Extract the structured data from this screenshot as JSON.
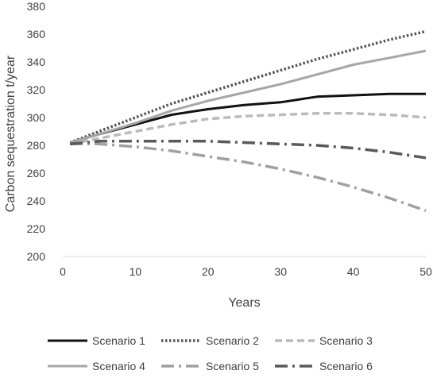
{
  "chart_data": {
    "type": "line",
    "title": "",
    "xlabel": "Years",
    "ylabel": "Carbon sequestration t/year",
    "xlim": [
      0,
      50
    ],
    "ylim": [
      200,
      380
    ],
    "x_ticks": [
      0,
      10,
      20,
      30,
      40,
      50
    ],
    "y_ticks": [
      200,
      220,
      240,
      260,
      280,
      300,
      320,
      340,
      360,
      380
    ],
    "grid": "none",
    "legend_position": "bottom",
    "x": [
      1,
      5,
      10,
      15,
      20,
      25,
      30,
      35,
      40,
      45,
      50
    ],
    "series": [
      {
        "name": "Scenario 1",
        "color": "#111111",
        "dash": "solid",
        "values": [
          282,
          288,
          295,
          302,
          306,
          309,
          311,
          315,
          316,
          317,
          317
        ]
      },
      {
        "name": "Scenario 2",
        "color": "#555555",
        "dash": "dot",
        "values": [
          282,
          290,
          300,
          310,
          318,
          326,
          334,
          342,
          349,
          356,
          362
        ]
      },
      {
        "name": "Scenario 3",
        "color": "#bbbbbb",
        "dash": "dash",
        "values": [
          281,
          285,
          290,
          295,
          299,
          301,
          302,
          303,
          303,
          302,
          300
        ]
      },
      {
        "name": "Scenario 4",
        "color": "#a6a6a6",
        "dash": "solid",
        "values": [
          282,
          288,
          296,
          305,
          312,
          318,
          324,
          331,
          338,
          343,
          348
        ]
      },
      {
        "name": "Scenario 5",
        "color": "#a0a0a0",
        "dash": "dashdot",
        "values": [
          281,
          281,
          279,
          276,
          272,
          268,
          263,
          257,
          250,
          242,
          233
        ]
      },
      {
        "name": "Scenario 6",
        "color": "#5a5a5a",
        "dash": "dashdot",
        "values": [
          281,
          283,
          283,
          283,
          283,
          282,
          281,
          280,
          278,
          275,
          271
        ]
      }
    ]
  }
}
